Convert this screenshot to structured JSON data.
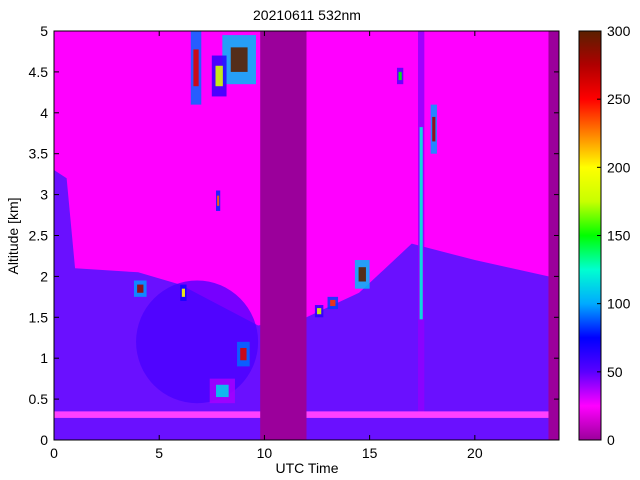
{
  "chart_data": {
    "type": "heatmap",
    "title": "20210611 532nm",
    "xlabel": "UTC Time",
    "ylabel": "Altitude [km]",
    "xlim": [
      0,
      24
    ],
    "ylim": [
      0,
      5
    ],
    "x_ticks": [
      0,
      5,
      10,
      15,
      20
    ],
    "y_ticks": [
      0,
      0.5,
      1,
      1.5,
      2,
      2.5,
      3,
      3.5,
      4,
      4.5,
      5
    ],
    "colorbar": {
      "range": [
        0,
        300
      ],
      "ticks": [
        0,
        50,
        100,
        150,
        200,
        250,
        300
      ],
      "colors": [
        "#9b009b",
        "#ff00ff",
        "#5a00ff",
        "#0000ff",
        "#00aaff",
        "#00ffd0",
        "#00ff00",
        "#c8ff00",
        "#ffff00",
        "#ff8000",
        "#ff0000",
        "#b00000",
        "#5a2000"
      ]
    },
    "no_data_intervals": [
      [
        9.8,
        12.0
      ],
      [
        23.5,
        24.0
      ]
    ],
    "surface_layer": {
      "altitude_range": [
        0.27,
        0.35
      ],
      "value": 30
    },
    "boundary_layer_top": [
      {
        "x": 0.0,
        "y": 3.3
      },
      {
        "x": 0.6,
        "y": 3.2
      },
      {
        "x": 1.0,
        "y": 2.1
      },
      {
        "x": 4.0,
        "y": 2.05
      },
      {
        "x": 6.0,
        "y": 1.9
      },
      {
        "x": 9.7,
        "y": 1.4
      },
      {
        "x": 12.0,
        "y": 1.5
      },
      {
        "x": 14.5,
        "y": 1.8
      },
      {
        "x": 17.0,
        "y": 2.4
      },
      {
        "x": 20.0,
        "y": 2.2
      },
      {
        "x": 23.5,
        "y": 2.0
      }
    ],
    "aerosol_region": {
      "x_range": [
        3.9,
        9.7
      ],
      "y_range": [
        0.45,
        1.95
      ],
      "value": 55
    },
    "cloud_features": [
      {
        "x_range": [
          6.5,
          7.0
        ],
        "y_range": [
          4.1,
          5.0
        ],
        "peak": 260
      },
      {
        "x_range": [
          8.0,
          9.6
        ],
        "y_range": [
          4.35,
          4.95
        ],
        "peak": 300
      },
      {
        "x_range": [
          7.5,
          8.2
        ],
        "y_range": [
          4.2,
          4.7
        ],
        "peak": 180
      },
      {
        "x_range": [
          7.7,
          7.9
        ],
        "y_range": [
          2.8,
          3.05
        ],
        "peak": 230
      },
      {
        "x_range": [
          3.8,
          4.4
        ],
        "y_range": [
          1.75,
          1.95
        ],
        "peak": 280
      },
      {
        "x_range": [
          6.0,
          6.3
        ],
        "y_range": [
          1.7,
          1.9
        ],
        "peak": 200
      },
      {
        "x_range": [
          8.7,
          9.3
        ],
        "y_range": [
          0.9,
          1.2
        ],
        "peak": 260
      },
      {
        "x_range": [
          7.4,
          8.6
        ],
        "y_range": [
          0.45,
          0.75
        ],
        "peak": 110
      },
      {
        "x_range": [
          17.3,
          17.6
        ],
        "y_range": [
          0.3,
          5.0
        ],
        "peak": 120
      },
      {
        "x_range": [
          17.9,
          18.2
        ],
        "y_range": [
          3.5,
          4.1
        ],
        "peak": 280
      },
      {
        "x_range": [
          14.3,
          15.0
        ],
        "y_range": [
          1.85,
          2.2
        ],
        "peak": 300
      },
      {
        "x_range": [
          13.0,
          13.5
        ],
        "y_range": [
          1.6,
          1.75
        ],
        "peak": 240
      },
      {
        "x_range": [
          12.4,
          12.8
        ],
        "y_range": [
          1.5,
          1.65
        ],
        "peak": 180
      },
      {
        "x_range": [
          16.3,
          16.6
        ],
        "y_range": [
          4.35,
          4.55
        ],
        "peak": 150
      }
    ],
    "grid": false,
    "legend": "none"
  }
}
